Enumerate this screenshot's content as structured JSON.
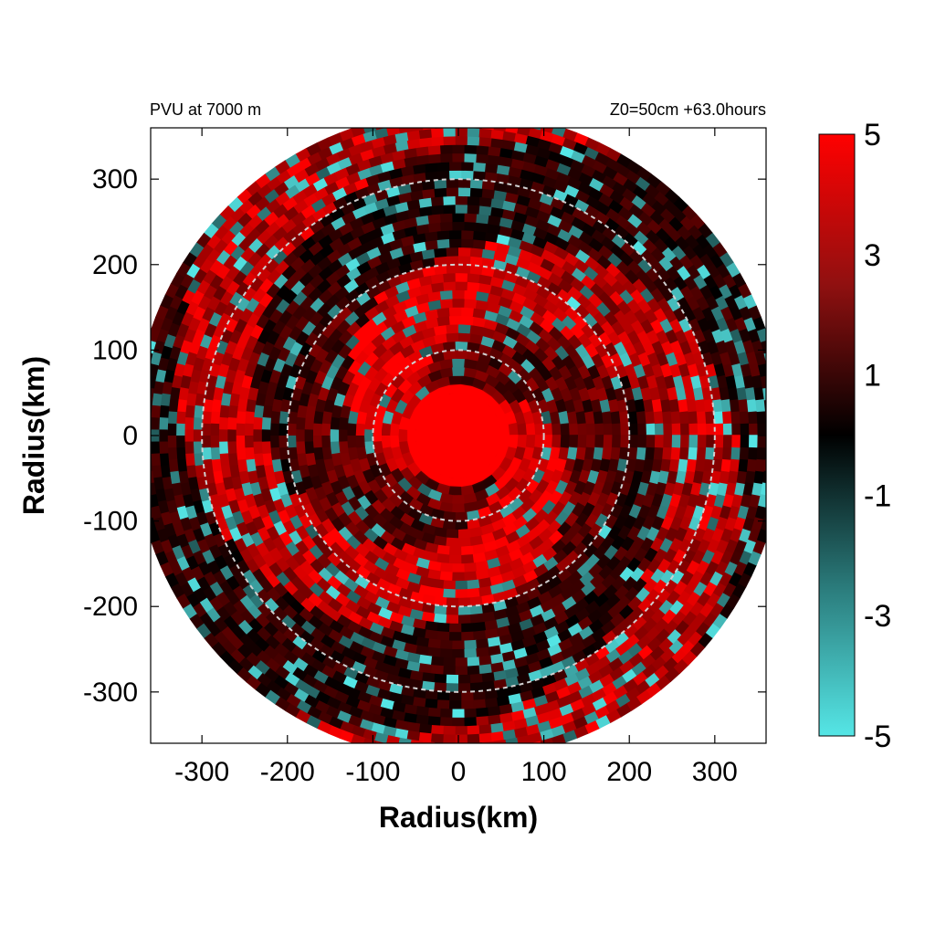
{
  "chart_data": {
    "type": "heatmap",
    "title_left": "PVU at  7000 m",
    "title_right": "Z0=50cm  +63.0hours",
    "xlabel": "Radius(km)",
    "ylabel": "Radius(km)",
    "xlim": [
      -360,
      360
    ],
    "ylim": [
      -360,
      360
    ],
    "x_ticks": [
      -300,
      -200,
      -100,
      0,
      100,
      200,
      300
    ],
    "y_ticks": [
      300,
      200,
      100,
      0,
      -100,
      -200,
      -300
    ],
    "domain_radius_km": 380,
    "reference_circles_km": [
      100,
      200,
      300
    ],
    "colorbar": {
      "min": -5,
      "max": 5,
      "ticks": [
        5,
        3,
        1,
        -1,
        -3,
        -5
      ],
      "colors": {
        "low": "#55e6e6",
        "mid": "#000000",
        "high": "#ff0000"
      }
    },
    "field_description": "Potential vorticity field; strong positive core (~5 PVU) within ~60 km of center, mixed positive and negative spiral bands outward"
  }
}
